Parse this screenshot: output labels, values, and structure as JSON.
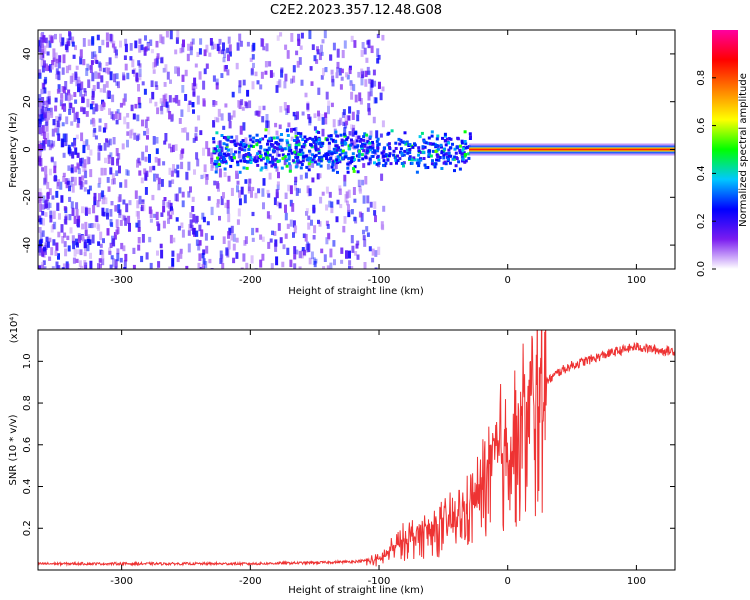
{
  "title": "C2E2.2023.357.12.48.G08",
  "chart_data": [
    {
      "type": "heatmap",
      "xlabel": "Height of straight line (km)",
      "ylabel": "Frequency (Hz)",
      "xlim": [
        -365,
        130
      ],
      "ylim": [
        -50,
        50
      ],
      "xticks": [
        -300,
        -200,
        -100,
        0,
        100
      ],
      "yticks": [
        -40,
        -20,
        0,
        20,
        40
      ],
      "colorbar": {
        "label": "Normalized spectral amplitude",
        "range": [
          0.0,
          1.0
        ],
        "ticks": [
          "0.0",
          "0.2",
          "0.4",
          "0.6",
          "0.8"
        ],
        "stops": [
          "#ffffff",
          "#7a1cf0",
          "#0000ff",
          "#00c8ff",
          "#00ff00",
          "#ffff00",
          "#ff8000",
          "#ff0000",
          "#ff00a0"
        ]
      },
      "regions": [
        {
          "name": "noise",
          "x": [
            -365,
            -110
          ],
          "freq_range": [
            -50,
            50
          ],
          "amplitude": 0.05
        },
        {
          "name": "cluster",
          "x": [
            -230,
            -30
          ],
          "freq_range": [
            -10,
            10
          ],
          "amplitude": 0.35
        },
        {
          "name": "carrier",
          "x": [
            -30,
            130
          ],
          "freq": 0,
          "amplitude": 0.85
        }
      ]
    },
    {
      "type": "line",
      "xlabel": "Height of straight line (km)",
      "ylabel": "SNR (10 * v/v)",
      "yscale_label": "(x10⁴)",
      "xlim": [
        -365,
        130
      ],
      "ylim": [
        0.0,
        1.15
      ],
      "xticks": [
        -300,
        -200,
        -100,
        0,
        100
      ],
      "yticks": [
        0.2,
        0.4,
        0.6,
        0.8,
        1.0
      ],
      "color": "#ee3333",
      "x": [
        -365,
        -300,
        -200,
        -150,
        -120,
        -100,
        -90,
        -80,
        -70,
        -60,
        -50,
        -40,
        -30,
        -20,
        -15,
        -10,
        0,
        5,
        10,
        20,
        30,
        40,
        50,
        60,
        80,
        100,
        120,
        130
      ],
      "y": [
        0.03,
        0.03,
        0.03,
        0.035,
        0.04,
        0.05,
        0.1,
        0.15,
        0.18,
        0.2,
        0.22,
        0.25,
        0.3,
        0.4,
        0.5,
        0.55,
        0.6,
        0.65,
        0.7,
        0.82,
        0.9,
        0.95,
        0.98,
        1.0,
        1.04,
        1.07,
        1.05,
        1.05
      ]
    }
  ]
}
